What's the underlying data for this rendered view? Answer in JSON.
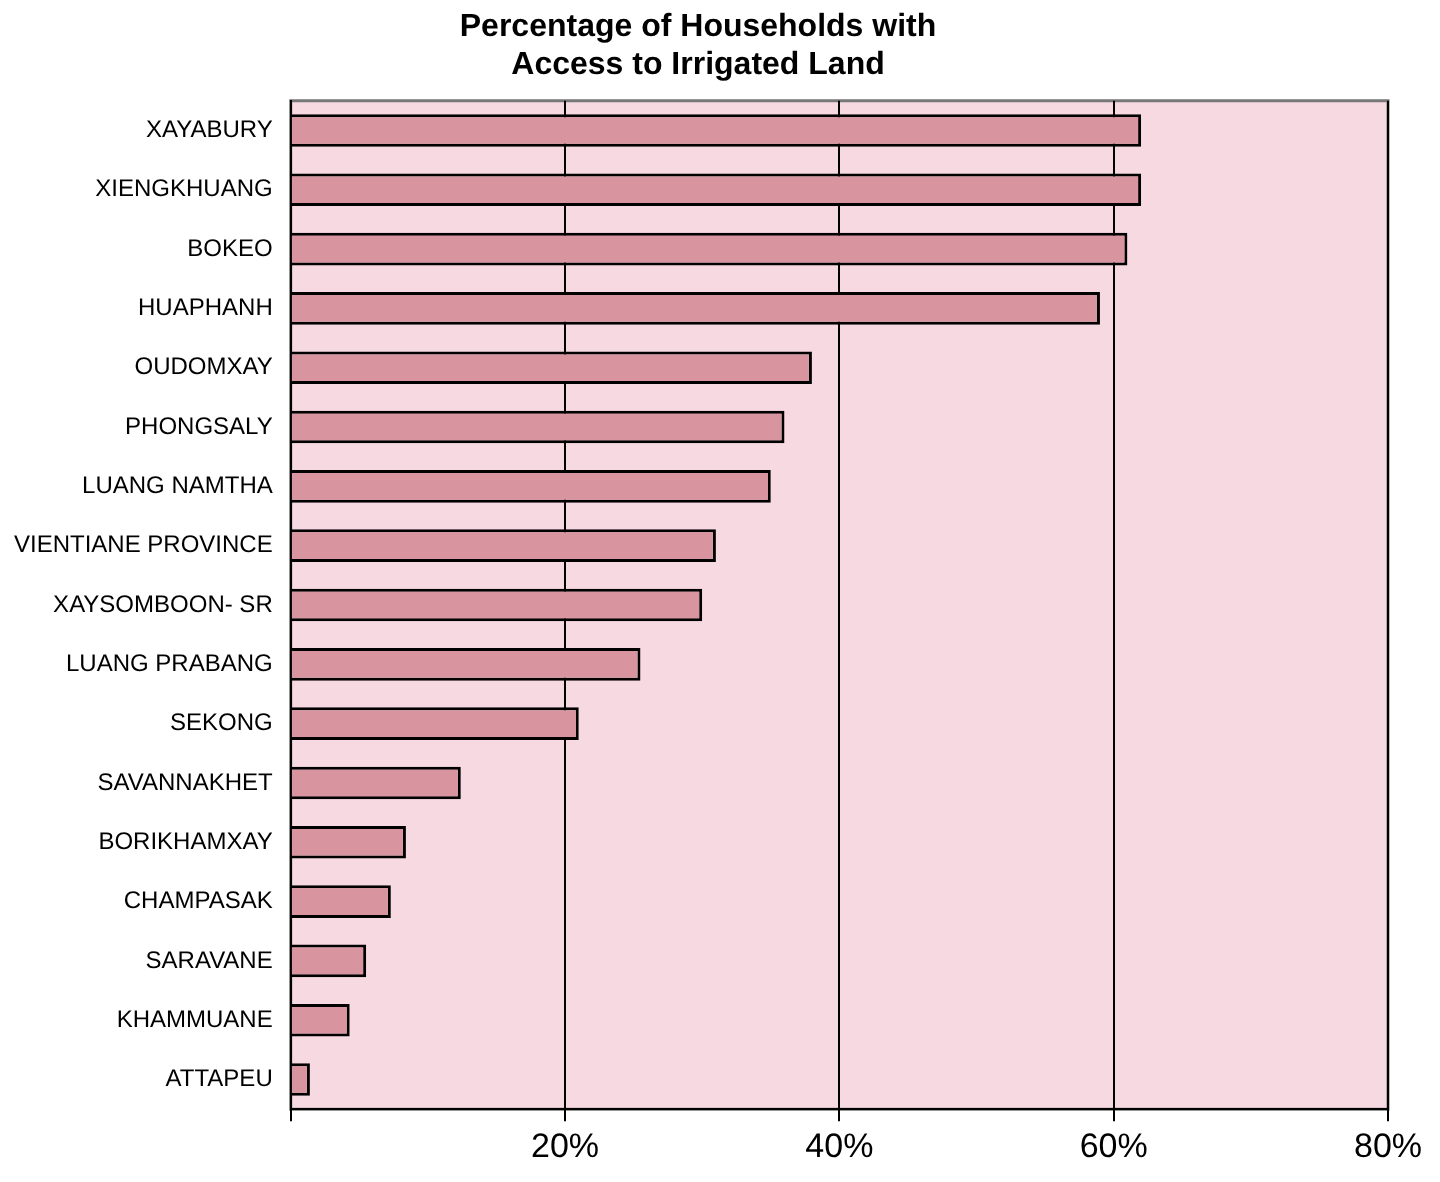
{
  "chart_data": {
    "type": "bar",
    "orientation": "horizontal",
    "title": "Percentage of Households with\nAccess to Irrigated Land",
    "categories": [
      "XAYABURY",
      "XIENGKHUANG",
      "BOKEO",
      "HUAPHANH",
      "OUDOMXAY",
      "PHONGSALY",
      "LUANG NAMTHA",
      "VIENTIANE PROVINCE",
      "XAYSOMBOON- SR",
      "LUANG PRABANG",
      "SEKONG",
      "SAVANNAKHET",
      "BORIKHAMXAY",
      "CHAMPASAK",
      "SARAVANE",
      "KHAMMUANE",
      "ATTAPEU"
    ],
    "values": [
      62,
      62,
      61,
      59,
      38,
      36,
      35,
      31,
      30,
      25.5,
      21,
      12.4,
      8.4,
      7.3,
      5.5,
      4.3,
      1.4
    ],
    "color": "#d9959f",
    "xlim": [
      0,
      80
    ],
    "xticks": [
      {
        "value": 0,
        "label": null
      },
      {
        "value": 20,
        "label": "20%"
      },
      {
        "value": 40,
        "label": "40%"
      },
      {
        "value": 60,
        "label": "60%"
      },
      {
        "value": 80,
        "label": "80%"
      }
    ],
    "grid": "x",
    "legend": false
  }
}
